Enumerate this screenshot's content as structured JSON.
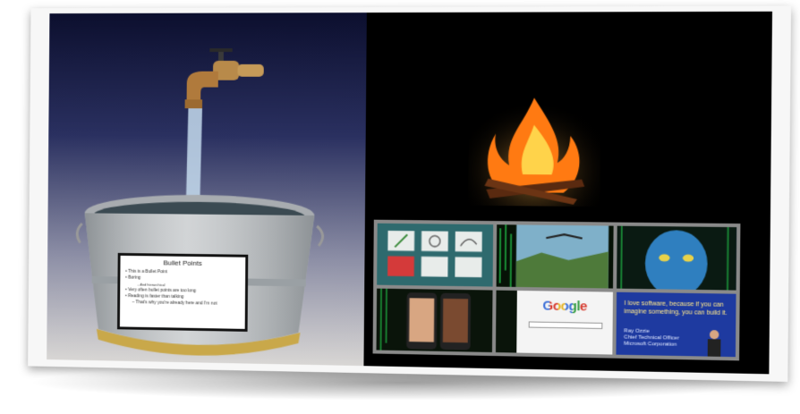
{
  "slide": {
    "title": "Bullet Points",
    "bullets": [
      "•  This is a Bullet Point",
      "•  Boring",
      "– And hierarchical",
      "•  Very often bullet points are too long",
      "•  Reading is faster than talking",
      "– That's why you're already here and I'm not"
    ]
  },
  "thumbnails": {
    "google_logo": "Google",
    "quote_text": "I love software, because if you can imagine something, you can build it.",
    "quote_name": "Ray Ozzie",
    "quote_role": "Chief Technical Officer",
    "quote_company": "Microsoft Corporation"
  },
  "colors": {
    "card": "#f7f7f7",
    "water": "#c6dcef",
    "fire": "#ff7a12",
    "matrix_green": "#22c24a",
    "avatar_blue": "#2f7fbf"
  }
}
